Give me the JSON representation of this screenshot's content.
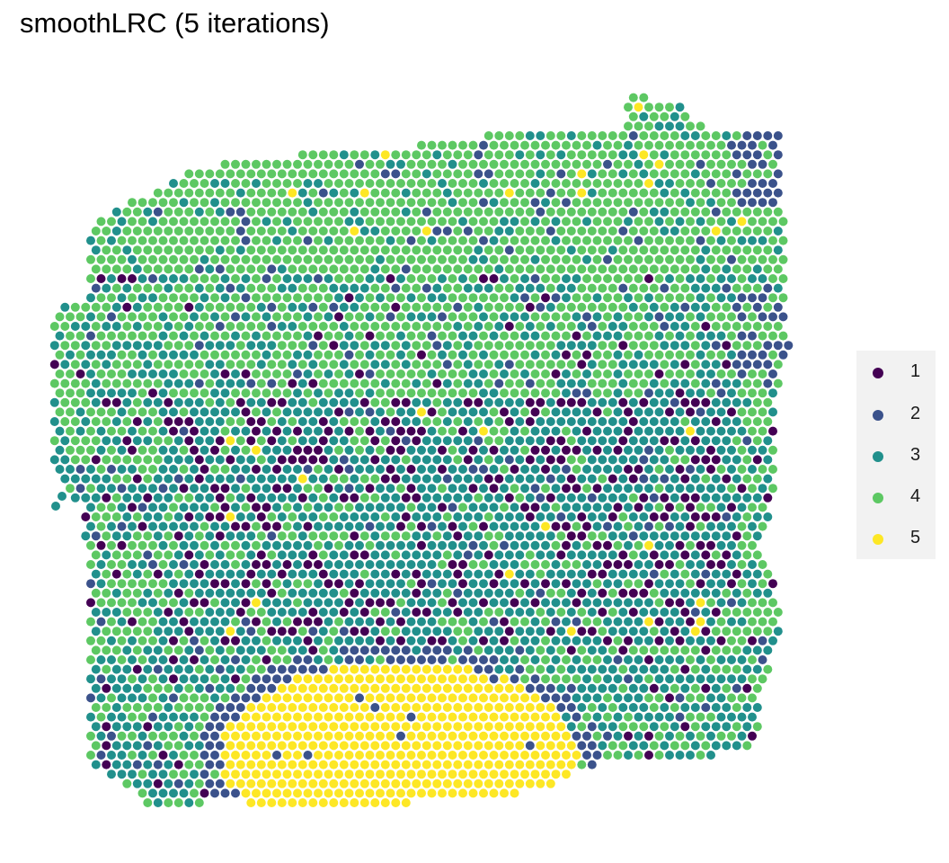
{
  "chart_data": {
    "type": "scatter",
    "title": "smoothLRC (5 iterations)",
    "xlabel": "",
    "ylabel": "",
    "grid": false,
    "legend_position": "right",
    "spot_layout": "hexagonal",
    "categories": [
      "1",
      "2",
      "3",
      "4",
      "5"
    ],
    "colors": {
      "1": "#440154",
      "2": "#3B528B",
      "3": "#21908C",
      "4": "#5DC863",
      "5": "#FDE725"
    },
    "regions": [
      {
        "label": "4",
        "description": "outer tissue area, top and left"
      },
      {
        "label": "3",
        "description": "central band"
      },
      {
        "label": "1",
        "description": "scattered within central band"
      },
      {
        "label": "2",
        "description": "border around lower region and top-right corner"
      },
      {
        "label": "5",
        "description": "lower central region"
      }
    ]
  },
  "legend": {
    "items": [
      {
        "label": "1",
        "color": "#440154"
      },
      {
        "label": "2",
        "color": "#3B528B"
      },
      {
        "label": "3",
        "color": "#21908C"
      },
      {
        "label": "4",
        "color": "#5DC863"
      },
      {
        "label": "5",
        "color": "#FDE725"
      }
    ]
  }
}
